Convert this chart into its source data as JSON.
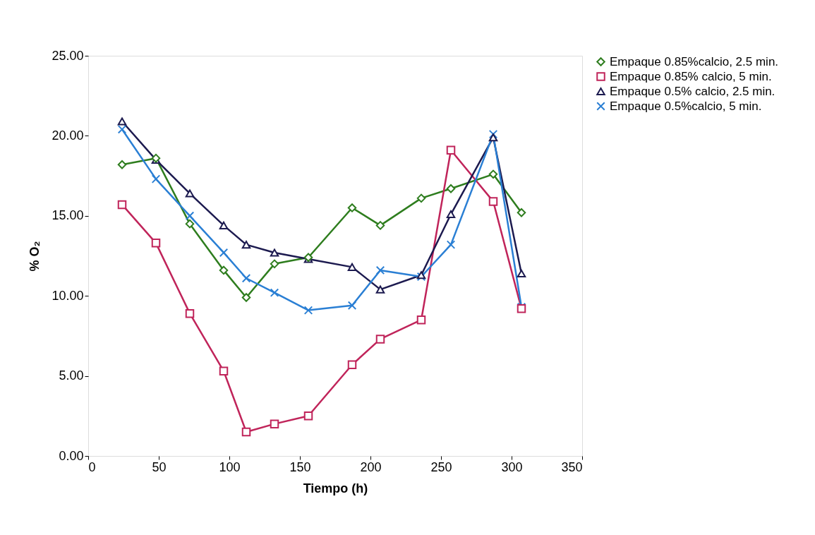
{
  "chart_data": {
    "type": "line",
    "xlabel": "Tiempo (h)",
    "ylabel": "% O₂",
    "x": [
      24,
      48,
      72,
      96,
      112,
      132,
      156,
      187,
      207,
      236,
      257,
      287,
      307
    ],
    "xlim": [
      0,
      350
    ],
    "xticks": [
      0,
      50,
      100,
      150,
      200,
      250,
      300,
      350
    ],
    "ylim": [
      0,
      25
    ],
    "yticks": [
      {
        "value": 0,
        "label": "0.00"
      },
      {
        "value": 5,
        "label": "5.00"
      },
      {
        "value": 10,
        "label": "10.00"
      },
      {
        "value": 15,
        "label": "15.00"
      },
      {
        "value": 20,
        "label": "20.00"
      },
      {
        "value": 25,
        "label": "25.00"
      }
    ],
    "grid": false,
    "legend": "right",
    "line_style": "solid",
    "series": [
      {
        "name": "Empaque 0.85%calcio, 2.5 min.",
        "color": "#2e7d1e",
        "marker": "diamond",
        "values": [
          18.2,
          18.6,
          14.5,
          11.6,
          9.9,
          12.0,
          12.4,
          15.5,
          14.4,
          16.1,
          16.7,
          17.6,
          15.2
        ]
      },
      {
        "name": "Empaque 0.85% calcio, 5 min.",
        "color": "#c0245a",
        "marker": "square",
        "values": [
          15.7,
          13.3,
          8.9,
          5.3,
          1.5,
          2.0,
          2.5,
          5.7,
          7.3,
          8.5,
          19.1,
          15.9,
          9.2
        ]
      },
      {
        "name": "Empaque 0.5% calcio, 2.5 min.",
        "color": "#1c1a4f",
        "marker": "triangle",
        "values": [
          20.9,
          18.5,
          16.4,
          14.4,
          13.2,
          12.7,
          12.3,
          11.8,
          10.4,
          11.3,
          15.1,
          19.9,
          11.4
        ]
      },
      {
        "name": "Empaque 0.5%calcio, 5 min.",
        "color": "#2a7fd4",
        "marker": "cross",
        "values": [
          20.4,
          17.3,
          15.0,
          12.7,
          11.1,
          10.2,
          9.1,
          9.4,
          11.6,
          11.2,
          13.2,
          20.1,
          9.3
        ]
      }
    ]
  }
}
